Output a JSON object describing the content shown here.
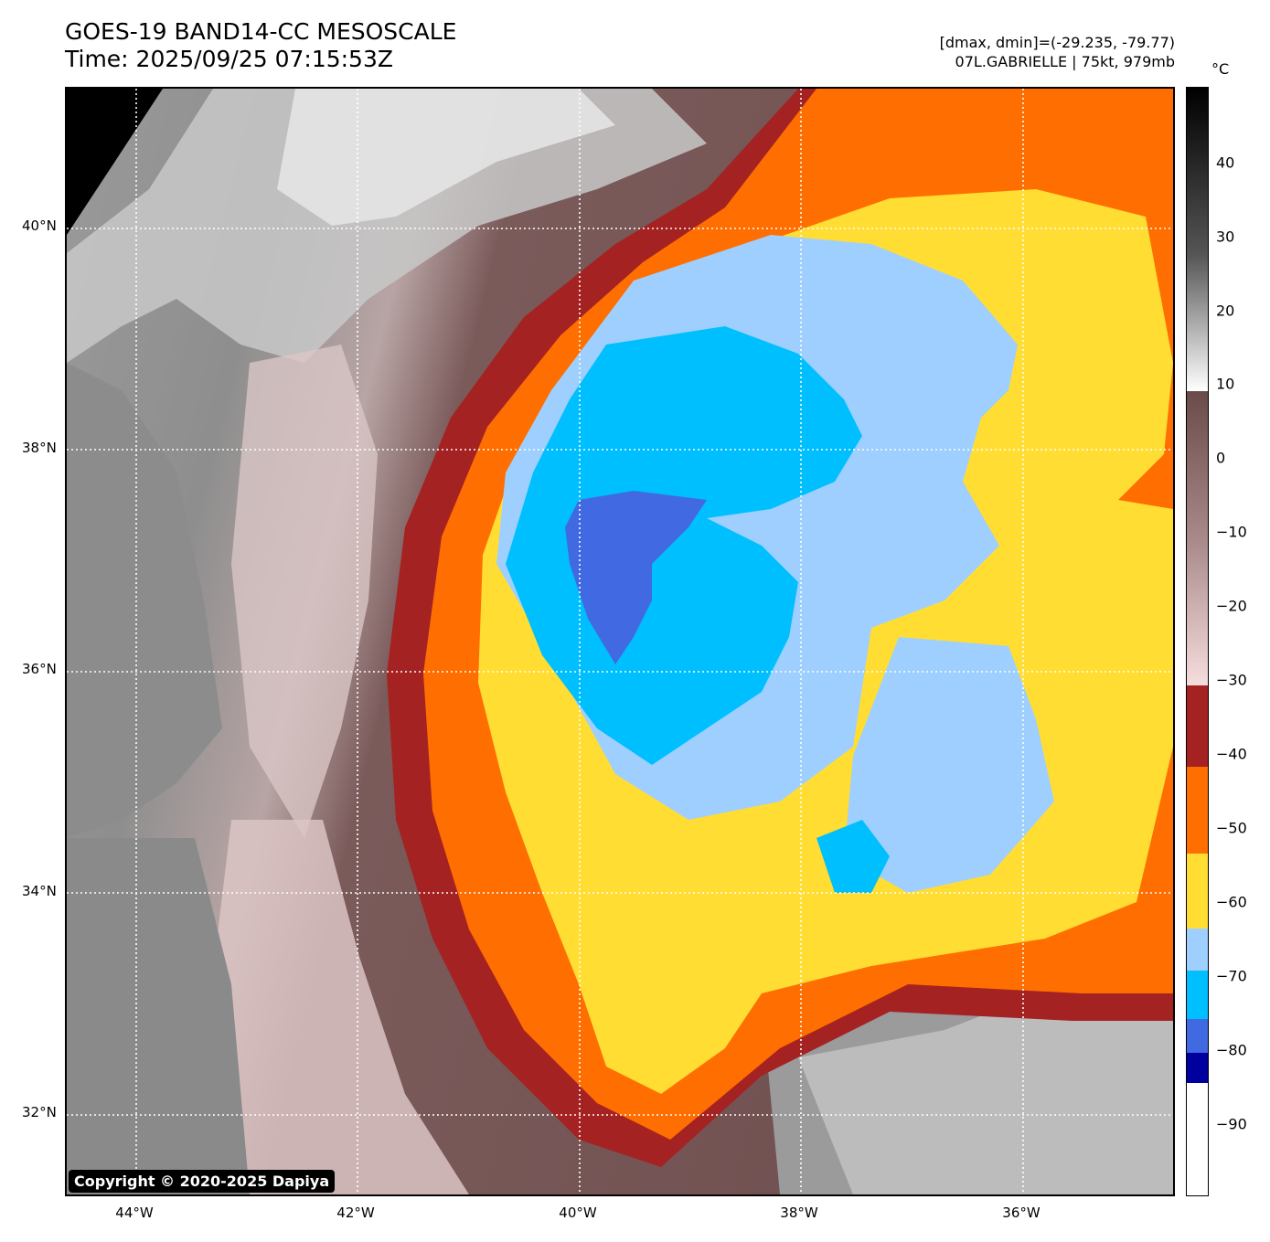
{
  "header": {
    "title_line1": "GOES-19 BAND14-CC MESOSCALE",
    "title_line2": "Time: 2025/09/25 07:15:53Z",
    "meta_line1": "[dmax, dmin]=(-29.235, -79.77)",
    "meta_line2": "07L.GABRIELLE | 75kt, 979mb"
  },
  "map": {
    "lat_labels": [
      "40°N",
      "38°N",
      "36°N",
      "34°N",
      "32°N"
    ],
    "lon_labels": [
      "44°W",
      "42°W",
      "40°W",
      "38°W",
      "36°W"
    ],
    "copyright": "Copyright © 2020-2025 Dapiya"
  },
  "colorbar": {
    "unit": "°C",
    "labels": [
      "40",
      "30",
      "20",
      "10",
      "0",
      "−10",
      "−20",
      "−30",
      "−40",
      "−50",
      "−60",
      "−70",
      "−80",
      "−90"
    ],
    "colors": {
      "gt_10": "#9a9a9a",
      "m30_to_10": "#7b5a5a",
      "m40_to_m30": "#a52222",
      "m50_to_m40": "#ff6e00",
      "m60_to_m50": "#ffdd33",
      "m65_to_m60": "#9ecfff",
      "m75_to_m65": "#00bfff",
      "m80_to_m75": "#4169e1",
      "m85_to_m80": "#00009e"
    }
  }
}
